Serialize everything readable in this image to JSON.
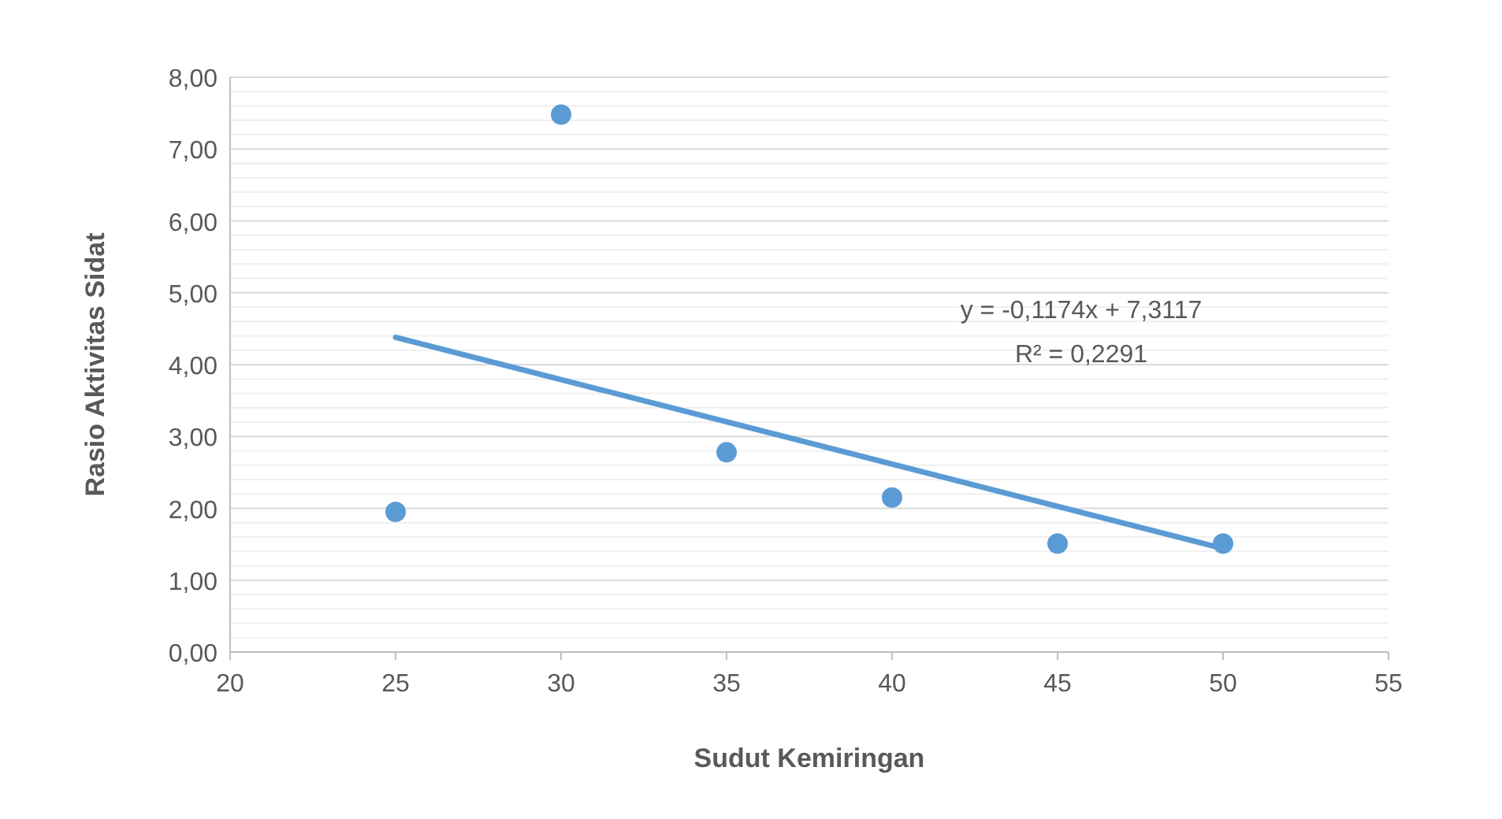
{
  "chart_data": {
    "type": "scatter",
    "xlabel": "Sudut Kemiringan",
    "ylabel": "Rasio Aktivitas Sidat",
    "x": [
      25,
      30,
      35,
      40,
      45,
      50
    ],
    "series": [
      {
        "color": "#5b9bd5",
        "marker": "circle",
        "values": [
          1.95,
          7.48,
          2.78,
          2.15,
          1.51,
          1.51
        ]
      },
      {
        "type": "line",
        "color": "#5b9bd5",
        "marker": "none",
        "x": [
          25,
          50
        ],
        "values": [
          4.38,
          1.44
        ]
      }
    ],
    "xlim": [
      20,
      55
    ],
    "xticks": [
      20,
      25,
      30,
      35,
      40,
      45,
      50,
      55
    ],
    "ylim": [
      0,
      8
    ],
    "yticks": [
      {
        "value": 0,
        "label": "0,00"
      },
      {
        "value": 0.2,
        "label": null
      },
      {
        "value": 0.4,
        "label": null
      },
      {
        "value": 0.6,
        "label": null
      },
      {
        "value": 0.8,
        "label": null
      },
      {
        "value": 1,
        "label": "1,00"
      },
      {
        "value": 1.2,
        "label": null
      },
      {
        "value": 1.4,
        "label": null
      },
      {
        "value": 1.6,
        "label": null
      },
      {
        "value": 1.8,
        "label": null
      },
      {
        "value": 2,
        "label": "2,00"
      },
      {
        "value": 2.2,
        "label": null
      },
      {
        "value": 2.4,
        "label": null
      },
      {
        "value": 2.6,
        "label": null
      },
      {
        "value": 2.8,
        "label": null
      },
      {
        "value": 3,
        "label": "3,00"
      },
      {
        "value": 3.2,
        "label": null
      },
      {
        "value": 3.4,
        "label": null
      },
      {
        "value": 3.6,
        "label": null
      },
      {
        "value": 3.8,
        "label": null
      },
      {
        "value": 4,
        "label": "4,00"
      },
      {
        "value": 4.2,
        "label": null
      },
      {
        "value": 4.4,
        "label": null
      },
      {
        "value": 4.6,
        "label": null
      },
      {
        "value": 4.8,
        "label": null
      },
      {
        "value": 5,
        "label": "5,00"
      },
      {
        "value": 5.2,
        "label": null
      },
      {
        "value": 5.4,
        "label": null
      },
      {
        "value": 5.6,
        "label": null
      },
      {
        "value": 5.8,
        "label": null
      },
      {
        "value": 6,
        "label": "6,00"
      },
      {
        "value": 6.2,
        "label": null
      },
      {
        "value": 6.4,
        "label": null
      },
      {
        "value": 6.6,
        "label": null
      },
      {
        "value": 6.8,
        "label": null
      },
      {
        "value": 7,
        "label": "7,00"
      },
      {
        "value": 7.2,
        "label": null
      },
      {
        "value": 7.4,
        "label": null
      },
      {
        "value": 7.6,
        "label": null
      },
      {
        "value": 7.8,
        "label": null
      },
      {
        "value": 8,
        "label": "8,00"
      }
    ],
    "grid": "y",
    "line_style": "solid",
    "annotations": [
      "y = -0,1174x + 7,3117",
      "R² = 0,2291"
    ]
  }
}
